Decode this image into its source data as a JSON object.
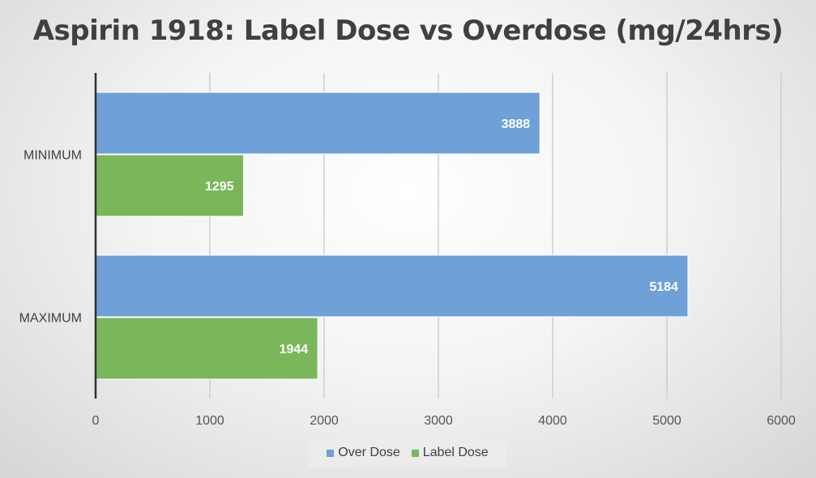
{
  "chart_data": {
    "type": "bar",
    "orientation": "horizontal",
    "title": "Aspirin 1918: Label Dose vs Overdose (mg/24hrs)",
    "categories": [
      "MINIMUM",
      "MAXIMUM"
    ],
    "series": [
      {
        "name": "Over Dose",
        "color": "#6fa0d8",
        "values": [
          3888,
          5184
        ]
      },
      {
        "name": "Label Dose",
        "color": "#7ab75a",
        "values": [
          1295,
          1944
        ]
      }
    ],
    "xlim": [
      0,
      6000
    ],
    "xticks": [
      0,
      1000,
      2000,
      3000,
      4000,
      5000,
      6000
    ],
    "xtick_labels": [
      "0",
      "1000",
      "2000",
      "3000",
      "4000",
      "5000",
      "6000"
    ],
    "grid": true,
    "data_labels": true,
    "legend_position": "bottom"
  }
}
